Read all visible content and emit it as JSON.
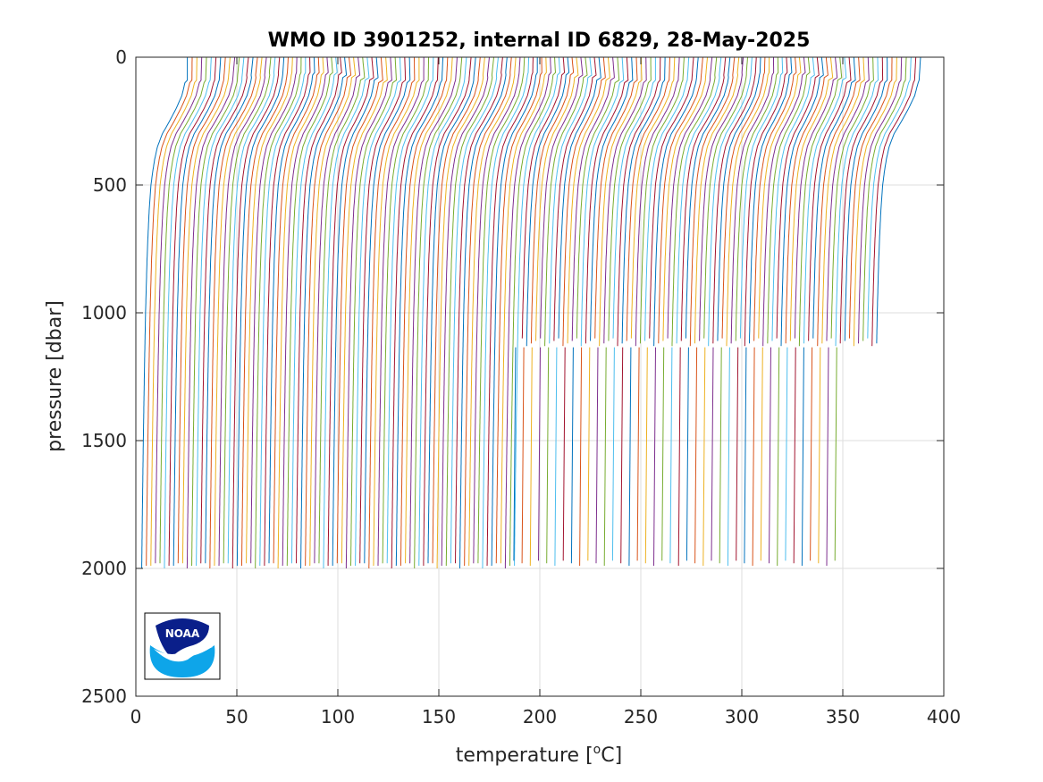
{
  "chart_data": {
    "type": "line",
    "title": "WMO ID 3901252, internal ID 6829, 28-May-2025",
    "xlabel": "temperature [",
    "xlabel_unit_sup": "o",
    "xlabel_unit": "C]",
    "ylabel": "pressure [dbar]",
    "xlim": [
      0,
      400
    ],
    "ylim": [
      2500,
      0
    ],
    "y_reversed": true,
    "grid": true,
    "xticks": [
      0,
      50,
      100,
      150,
      200,
      250,
      300,
      350,
      400
    ],
    "yticks": [
      0,
      500,
      1000,
      1500,
      2000,
      2500
    ],
    "series_layout": "waterfall: each profile offset along the temperature axis",
    "profile_count": 162,
    "profile_spacing_C": 2.25,
    "first_profile_offset_C": 2.5,
    "deep_profiles_to_2000dbar": 83,
    "later_profiles_max_pressure_dbar": 1130,
    "representative_profile": {
      "pressure": [
        0,
        50,
        100,
        150,
        200,
        250,
        300,
        350,
        400,
        450,
        500,
        600,
        700,
        800,
        1000,
        1200,
        1500,
        1800,
        2000
      ],
      "temperature_relative": [
        23.0,
        22.7,
        21.8,
        20.3,
        17.5,
        14.2,
        10.6,
        8.2,
        6.8,
        5.8,
        5.0,
        4.1,
        3.5,
        3.0,
        2.3,
        1.8,
        1.2,
        0.7,
        0.4
      ]
    },
    "color_cycle": [
      "#0072BD",
      "#D95319",
      "#EDB120",
      "#7E2F8E",
      "#77AC30",
      "#4DBEEE",
      "#A2142F"
    ]
  },
  "logo": {
    "text": "NOAA",
    "colors": {
      "dark": "#0a1f8a",
      "light": "#0ea5e9"
    }
  }
}
